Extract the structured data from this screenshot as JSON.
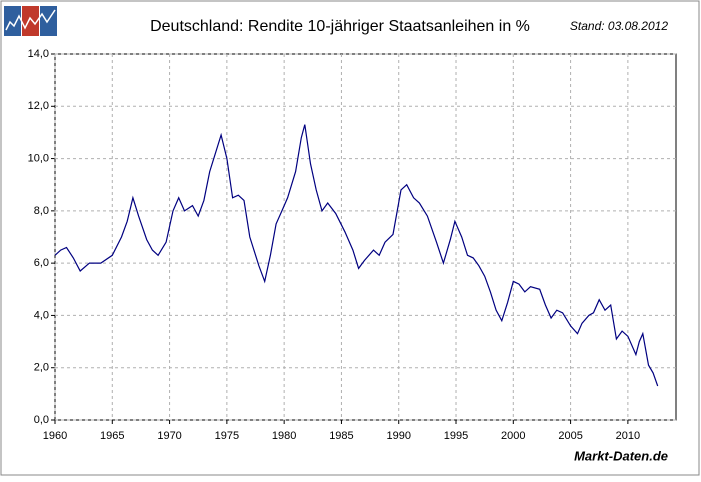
{
  "chart_data": {
    "type": "line",
    "title": "Deutschland: Rendite 10-jähriger Staatsanleihen in %",
    "subtitle": "Stand: 03.08.2012",
    "source": "Markt-Daten.de",
    "x": [
      1960,
      1960.5,
      1961,
      1961.6,
      1962.2,
      1963,
      1964,
      1965,
      1965.8,
      1966.3,
      1966.8,
      1967.3,
      1968,
      1968.5,
      1969,
      1969.7,
      1970.3,
      1970.8,
      1971.3,
      1972,
      1972.5,
      1973,
      1973.5,
      1974,
      1974.5,
      1975,
      1975.5,
      1976,
      1976.5,
      1977,
      1977.8,
      1978.3,
      1978.8,
      1979.3,
      1979.8,
      1980.3,
      1981,
      1981.5,
      1981.8,
      1982.3,
      1982.8,
      1983.3,
      1983.8,
      1984.5,
      1985.3,
      1986,
      1986.5,
      1987,
      1987.8,
      1988.3,
      1988.8,
      1989.5,
      1990.2,
      1990.7,
      1991.3,
      1991.8,
      1992.5,
      1993.3,
      1993.9,
      1994.5,
      1994.9,
      1995.5,
      1996,
      1996.5,
      1997,
      1997.5,
      1998,
      1998.5,
      1999,
      1999.5,
      2000,
      2000.5,
      2001,
      2001.5,
      2002.3,
      2002.8,
      2003.3,
      2003.8,
      2004.3,
      2005,
      2005.6,
      2006,
      2006.6,
      2007,
      2007.5,
      2008,
      2008.5,
      2009,
      2009.5,
      2010,
      2010.7,
      2011,
      2011.3,
      2011.8,
      2012.2,
      2012.6
    ],
    "values": [
      6.3,
      6.5,
      6.6,
      6.2,
      5.7,
      6.0,
      6.0,
      6.3,
      7.0,
      7.6,
      8.5,
      7.8,
      6.9,
      6.5,
      6.3,
      6.8,
      8.0,
      8.5,
      8.0,
      8.2,
      7.8,
      8.4,
      9.5,
      10.2,
      10.9,
      10.0,
      8.5,
      8.6,
      8.4,
      7.0,
      5.9,
      5.3,
      6.3,
      7.5,
      8.0,
      8.5,
      9.5,
      10.8,
      11.3,
      9.8,
      8.8,
      8.0,
      8.3,
      7.9,
      7.2,
      6.5,
      5.8,
      6.1,
      6.5,
      6.3,
      6.8,
      7.1,
      8.8,
      9.0,
      8.5,
      8.3,
      7.8,
      6.8,
      6.0,
      6.9,
      7.6,
      7.0,
      6.3,
      6.2,
      5.9,
      5.5,
      4.9,
      4.2,
      3.8,
      4.5,
      5.3,
      5.2,
      4.9,
      5.1,
      5.0,
      4.4,
      3.9,
      4.2,
      4.1,
      3.6,
      3.3,
      3.7,
      4.0,
      4.1,
      4.6,
      4.2,
      4.4,
      3.1,
      3.4,
      3.2,
      2.5,
      3.0,
      3.3,
      2.1,
      1.8,
      1.3
    ],
    "color": "#000080",
    "xlim": [
      1960,
      2014.2
    ],
    "xticks": [
      1960,
      1965,
      1970,
      1975,
      1980,
      1985,
      1990,
      1995,
      2000,
      2005,
      2010
    ],
    "ylim": [
      0,
      14
    ],
    "yticks": [
      {
        "value": 0,
        "label": "0,0"
      },
      {
        "value": 2,
        "label": "2,0"
      },
      {
        "value": 4,
        "label": "4,0"
      },
      {
        "value": 6,
        "label": "6,0"
      },
      {
        "value": 8,
        "label": "8,0"
      },
      {
        "value": 10,
        "label": "10,0"
      },
      {
        "value": 12,
        "label": "12,0"
      },
      {
        "value": 14,
        "label": "14,0"
      }
    ],
    "grid": true
  }
}
